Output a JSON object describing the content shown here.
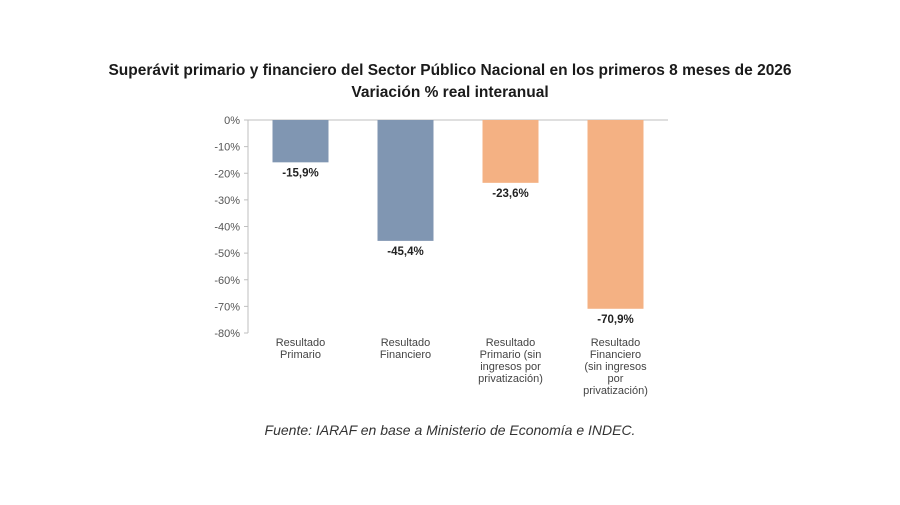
{
  "title_line1": "Superávit primario y financiero del Sector Público Nacional en los primeros 8 meses de 2026",
  "title_line2": "Variación % real interanual",
  "source": "Fuente: IARAF en base a Ministerio de Economía e INDEC.",
  "chart_data": {
    "type": "bar",
    "categories": [
      [
        "Resultado",
        "Primario"
      ],
      [
        "Resultado",
        "Financiero"
      ],
      [
        "Resultado",
        "Primario (sin",
        "ingresos por",
        "privatización)"
      ],
      [
        "Resultado",
        "Financiero",
        "(sin ingresos",
        "por",
        "privatización)"
      ]
    ],
    "values": [
      -15.9,
      -45.4,
      -23.6,
      -70.9
    ],
    "value_labels": [
      "-15,9%",
      "-45,4%",
      "-23,6%",
      "-70,9%"
    ],
    "colors": [
      "#8096b2",
      "#8096b2",
      "#f4b183",
      "#f4b183"
    ],
    "ylim": [
      -80,
      0
    ],
    "yticks": [
      "0%",
      "-10%",
      "-20%",
      "-30%",
      "-40%",
      "-50%",
      "-60%",
      "-70%",
      "-80%"
    ],
    "grid": false,
    "legend": "none"
  }
}
